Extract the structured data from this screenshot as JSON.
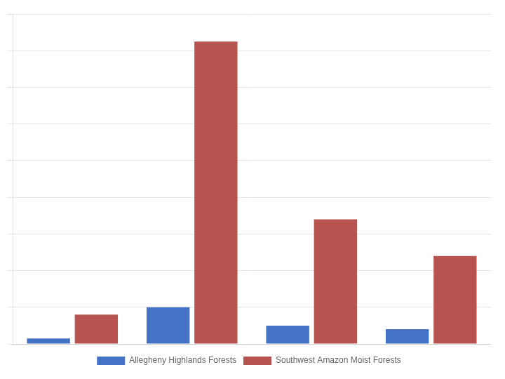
{
  "chart_data": {
    "type": "bar",
    "categories": [
      null,
      null,
      null,
      null
    ],
    "series": [
      {
        "name": "Allegheny Highlands Forests",
        "color": "#4472C4",
        "values": [
          30,
          200,
          100,
          80
        ]
      },
      {
        "name": "Southwest Amazon Moist Forests",
        "color": "#B85450",
        "values": [
          160,
          1650,
          680,
          480
        ]
      }
    ],
    "ylim": [
      0,
      1800
    ],
    "yticks": [
      0,
      200,
      400,
      600,
      800,
      1000,
      1200,
      1400,
      1600,
      1800
    ],
    "grid": true,
    "legend": "bottom",
    "tick_labels": false
  }
}
